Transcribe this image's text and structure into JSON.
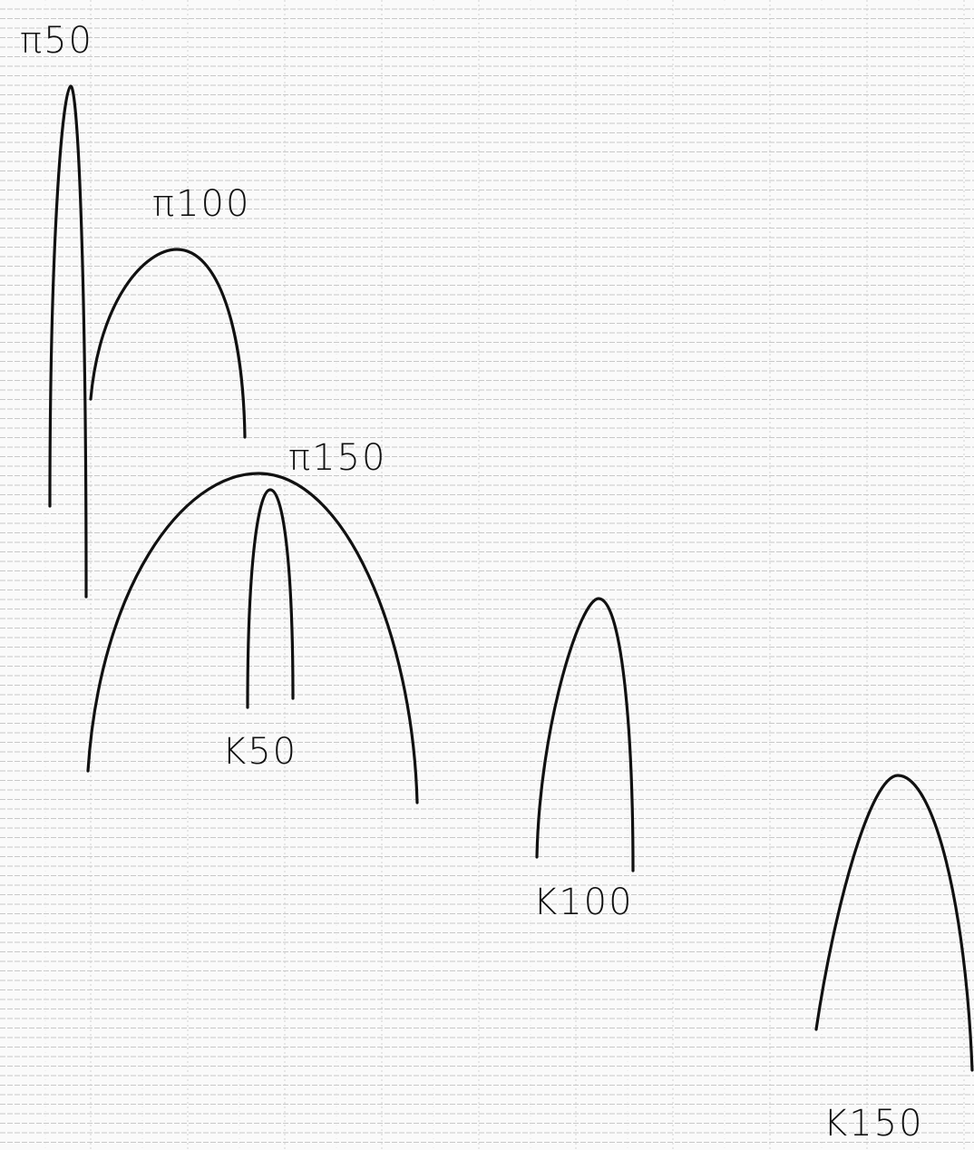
{
  "labels": [
    "π50",
    "π100",
    "π150",
    "K50",
    "K100",
    "K150"
  ]
}
